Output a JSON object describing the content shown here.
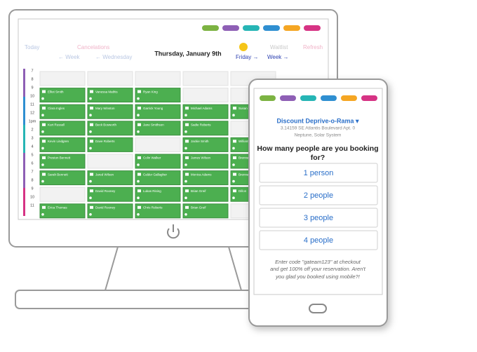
{
  "desktop": {
    "nav": {
      "today": "Today",
      "cancelations": "Cancelations",
      "waitlist": "Waitlist",
      "refresh": "Refresh",
      "prev_week": "← Week",
      "prev_day": "← Wednesday",
      "date": "Thursday, January 9th",
      "next_day": "Friday →",
      "next_week": "Week →"
    },
    "hours": [
      "7",
      "8",
      "9",
      "10",
      "11",
      "12",
      "1pm",
      "2",
      "3",
      "4",
      "5",
      "6",
      "7",
      "8",
      "9",
      "10",
      "11"
    ],
    "bookings": [
      [
        null,
        null,
        null,
        null,
        null
      ],
      [
        "Elliot Smith",
        "Vanessa Mathis",
        "Ryan King",
        null,
        null
      ],
      [
        "Clara Ingles",
        "Mary Winston",
        "Garrick Young",
        "Michael Adams",
        "Susan"
      ],
      [
        "Kurt Russell",
        "Beck Bosworth",
        "Jane Smithson",
        "Sadie Roberts",
        null
      ],
      [
        "Kevin Lindgren",
        "Dave Roberts",
        null,
        "Jackie Smith",
        "William"
      ],
      [
        "Preston Bennett",
        null,
        "Colin Walker",
        "James Wilson",
        "Brenna"
      ],
      [
        "Sarah Bennett",
        "Jared Wilson",
        "Calder Gallagher",
        "Monica Adams",
        "Brenna"
      ],
      [
        null,
        "David Rooney",
        "Lukas Rising",
        "Brian Greif",
        "Dillon"
      ],
      [
        "Erica Thomas",
        "David Rooney",
        "Chris Roberts",
        "Brian Greif",
        null
      ]
    ]
  },
  "mobile": {
    "venue": "Discount Deprive-o-Rama ▾",
    "address": [
      "3.14159 SE Atlantis Boulevard Apt. 0",
      "Neptune, Solar System"
    ],
    "question": [
      "How many people are you booking",
      "for?"
    ],
    "options": [
      "1 person",
      "2 people",
      "3 people",
      "4 people"
    ],
    "promo": [
      "Enter code \"gateam123\" at checkout",
      "and get 100% off your reservation. Aren't",
      "you glad you booked using mobile?!"
    ]
  }
}
